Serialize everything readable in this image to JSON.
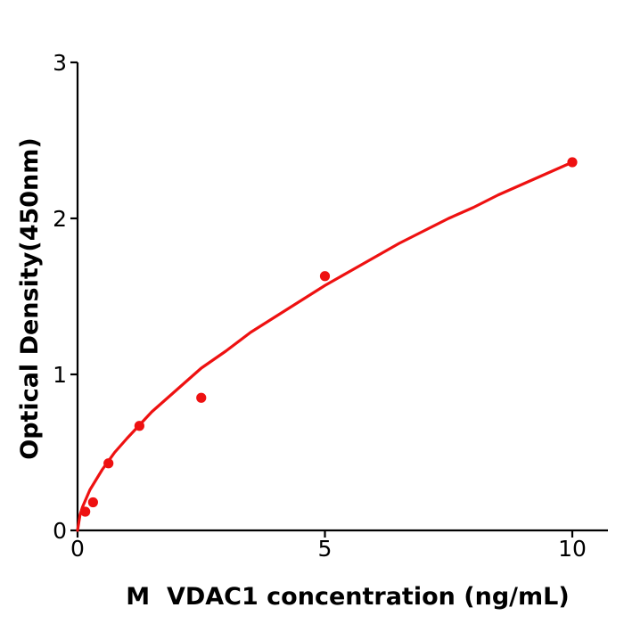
{
  "chart_data": {
    "type": "scatter",
    "title": "",
    "xlabel": "M  VDAC1 concentration (ng/mL)",
    "ylabel": "Optical Density(450nm)",
    "xlim": [
      0,
      10.72
    ],
    "ylim": [
      0,
      3
    ],
    "xticks": [
      0,
      5,
      10
    ],
    "yticks": [
      0,
      1,
      2,
      3
    ],
    "grid": false,
    "legend": false,
    "series": [
      {
        "name": "standard-data-points",
        "type": "scatter",
        "x": [
          0.156,
          0.313,
          0.625,
          1.25,
          2.5,
          5,
          10
        ],
        "y": [
          0.12,
          0.18,
          0.43,
          0.67,
          0.85,
          1.63,
          2.36
        ]
      },
      {
        "name": "fitted-curve",
        "type": "line",
        "x": [
          0,
          0.05,
          0.1,
          0.25,
          0.5,
          0.75,
          1,
          1.5,
          2,
          2.5,
          3,
          3.5,
          4,
          4.5,
          5,
          5.5,
          6,
          6.5,
          7,
          7.5,
          8,
          8.5,
          9,
          9.5,
          10
        ],
        "y": [
          0,
          0.1,
          0.15,
          0.26,
          0.39,
          0.5,
          0.59,
          0.76,
          0.9,
          1.04,
          1.15,
          1.27,
          1.37,
          1.47,
          1.57,
          1.66,
          1.75,
          1.84,
          1.92,
          2.0,
          2.07,
          2.15,
          2.22,
          2.29,
          2.36
        ]
      }
    ],
    "colors": {
      "points": "#ee1111",
      "curve": "#ee1111",
      "axis": "#000000",
      "background": "#ffffff"
    }
  }
}
